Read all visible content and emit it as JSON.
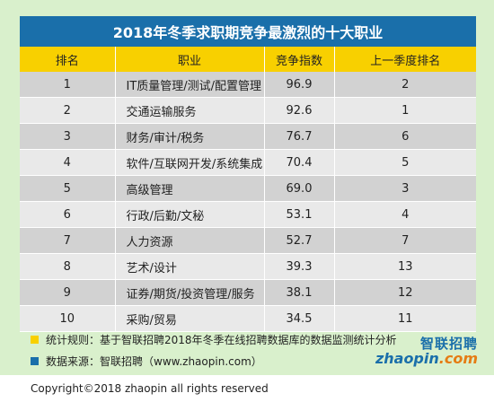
{
  "title": "2018年冬季求职期竞争最激烈的十大职业",
  "table": {
    "headers": [
      "排名",
      "职业",
      "竞争指数",
      "上一季度排名"
    ],
    "rows": [
      {
        "rank": "1",
        "job": "IT质量管理/测试/配置管理",
        "index": "96.9",
        "prev": "2"
      },
      {
        "rank": "2",
        "job": "交通运输服务",
        "index": "92.6",
        "prev": "1"
      },
      {
        "rank": "3",
        "job": "财务/审计/税务",
        "index": "76.7",
        "prev": "6"
      },
      {
        "rank": "4",
        "job": "软件/互联网开发/系统集成",
        "index": "70.4",
        "prev": "5"
      },
      {
        "rank": "5",
        "job": "高级管理",
        "index": "69.0",
        "prev": "3"
      },
      {
        "rank": "6",
        "job": "行政/后勤/文秘",
        "index": "53.1",
        "prev": "4"
      },
      {
        "rank": "7",
        "job": "人力资源",
        "index": "52.7",
        "prev": "7"
      },
      {
        "rank": "8",
        "job": "艺术/设计",
        "index": "39.3",
        "prev": "13"
      },
      {
        "rank": "9",
        "job": "证券/期货/投资管理/服务",
        "index": "38.1",
        "prev": "12"
      },
      {
        "rank": "10",
        "job": "采购/贸易",
        "index": "34.5",
        "prev": "11"
      }
    ]
  },
  "notes": {
    "rule": "统计规则：基于智联招聘2018年冬季在线招聘数据库的数据监测统计分析",
    "source": "数据来源：智联招聘（www.zhaopin.com）"
  },
  "logo": {
    "cn": "智联招聘",
    "en_main": "zhaopin",
    "en_suffix": ".com"
  },
  "footer": "Copyright©2018 zhaopin all rights reserved",
  "colors": {
    "background": "#d9f0cc",
    "title_bar": "#1a6faa",
    "header": "#f8d000",
    "row_dark": "#d2d2d2",
    "row_light": "#e9e9e9"
  }
}
